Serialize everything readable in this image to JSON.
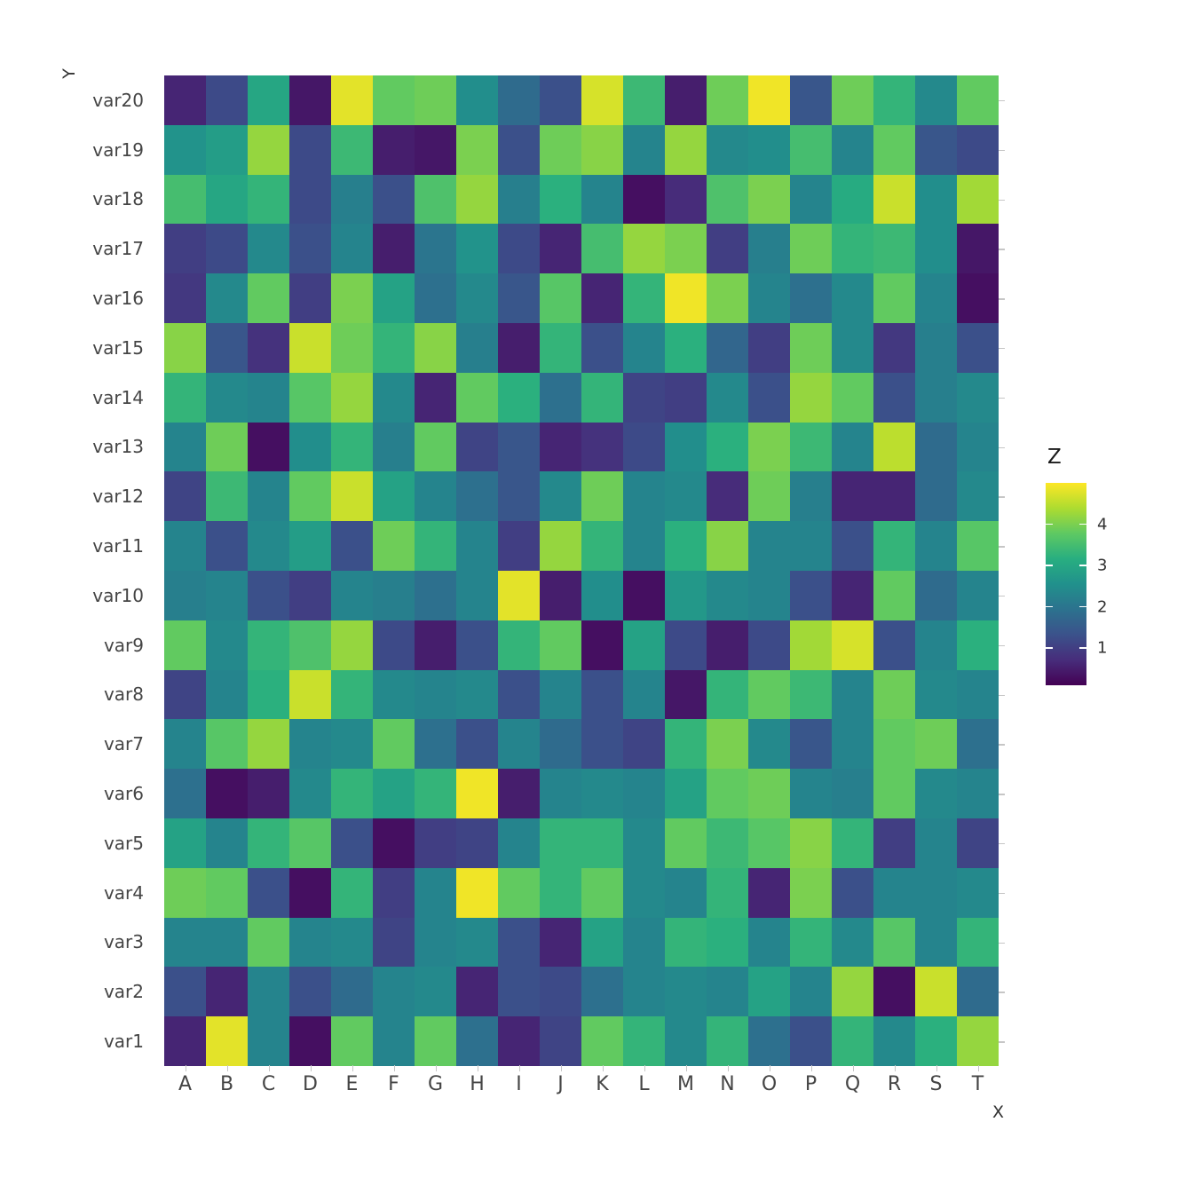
{
  "figure": {
    "background": "#ffffff"
  },
  "axes": {
    "x_title": "X",
    "y_title": "Y"
  },
  "legend": {
    "title": "Z",
    "ticks": [
      4,
      3,
      2,
      1
    ],
    "domain": [
      0.1,
      5.0
    ]
  },
  "colors": {
    "viridis_stops": [
      "#440154",
      "#472d7b",
      "#3b528b",
      "#2c728e",
      "#21918c",
      "#28ae80",
      "#5ec962",
      "#addc30",
      "#fde725"
    ],
    "tick_color": "#c6c6c6",
    "label_color": "#454545"
  },
  "chart_data": {
    "type": "heatmap",
    "title": "",
    "xlabel": "X",
    "ylabel": "Y",
    "zlabel": "Z",
    "x_categories": [
      "A",
      "B",
      "C",
      "D",
      "E",
      "F",
      "G",
      "H",
      "I",
      "J",
      "K",
      "L",
      "M",
      "N",
      "O",
      "P",
      "Q",
      "R",
      "S",
      "T"
    ],
    "y_categories_top_to_bottom": [
      "var20",
      "var19",
      "var18",
      "var17",
      "var16",
      "var15",
      "var14",
      "var13",
      "var12",
      "var11",
      "var10",
      "var9",
      "var8",
      "var7",
      "var6",
      "var5",
      "var4",
      "var3",
      "var2",
      "var1"
    ],
    "z_domain": [
      0.1,
      5.0
    ],
    "values_top_to_bottom": [
      [
        0.6,
        1.2,
        3.0,
        0.4,
        4.8,
        3.8,
        3.9,
        2.5,
        1.8,
        1.3,
        4.7,
        3.4,
        0.5,
        3.9,
        4.9,
        1.4,
        3.9,
        3.3,
        2.4,
        3.8
      ],
      [
        2.6,
        2.8,
        4.2,
        1.2,
        3.4,
        0.5,
        0.4,
        4.0,
        1.3,
        3.9,
        4.1,
        2.3,
        4.2,
        2.4,
        2.5,
        3.5,
        2.3,
        3.8,
        1.4,
        1.2
      ],
      [
        3.5,
        3.0,
        3.3,
        1.2,
        2.2,
        1.3,
        3.6,
        4.2,
        2.2,
        3.2,
        2.3,
        0.3,
        0.7,
        3.6,
        4.0,
        2.3,
        3.1,
        4.6,
        2.5,
        4.3
      ],
      [
        1.0,
        1.2,
        2.4,
        1.3,
        2.3,
        0.5,
        2.0,
        2.6,
        1.2,
        0.6,
        3.5,
        4.2,
        4.0,
        1.0,
        2.2,
        3.9,
        3.3,
        3.4,
        2.5,
        0.4
      ],
      [
        0.9,
        2.4,
        3.8,
        1.0,
        4.0,
        2.9,
        1.9,
        2.4,
        1.4,
        3.7,
        0.6,
        3.3,
        4.9,
        4.0,
        2.3,
        1.9,
        2.4,
        3.8,
        2.3,
        0.3
      ],
      [
        4.1,
        1.4,
        0.8,
        4.6,
        3.9,
        3.3,
        4.1,
        2.2,
        0.5,
        3.3,
        1.3,
        2.3,
        3.2,
        1.7,
        1.0,
        3.9,
        2.4,
        0.9,
        2.2,
        1.3
      ],
      [
        3.3,
        2.4,
        2.3,
        3.7,
        4.2,
        2.4,
        0.6,
        3.8,
        3.2,
        1.9,
        3.3,
        1.1,
        1.0,
        2.4,
        1.3,
        4.2,
        3.8,
        1.3,
        2.2,
        2.4
      ],
      [
        2.3,
        3.9,
        0.3,
        2.5,
        3.3,
        2.2,
        3.8,
        1.1,
        1.4,
        0.6,
        0.8,
        1.2,
        2.5,
        3.2,
        4.0,
        3.4,
        2.3,
        4.5,
        1.8,
        2.3
      ],
      [
        1.1,
        3.4,
        2.3,
        3.8,
        4.6,
        2.9,
        2.3,
        1.9,
        1.4,
        2.4,
        3.9,
        2.3,
        2.4,
        0.7,
        3.9,
        2.2,
        0.6,
        0.6,
        1.8,
        2.4
      ],
      [
        2.3,
        1.3,
        2.4,
        2.8,
        1.3,
        3.9,
        3.3,
        2.3,
        1.0,
        4.2,
        3.3,
        2.3,
        3.2,
        4.1,
        2.3,
        2.3,
        1.3,
        3.3,
        2.3,
        3.7
      ],
      [
        2.2,
        2.3,
        1.3,
        1.0,
        2.3,
        2.2,
        1.9,
        2.3,
        4.8,
        0.5,
        2.5,
        0.3,
        2.7,
        2.4,
        2.3,
        1.3,
        0.6,
        3.8,
        1.8,
        2.3
      ],
      [
        3.8,
        2.4,
        3.3,
        3.6,
        4.2,
        1.2,
        0.5,
        1.3,
        3.3,
        3.8,
        0.3,
        2.9,
        1.2,
        0.5,
        1.2,
        4.3,
        4.7,
        1.3,
        2.3,
        3.2
      ],
      [
        1.1,
        2.3,
        3.2,
        4.6,
        3.3,
        2.4,
        2.3,
        2.4,
        1.3,
        2.3,
        1.3,
        2.3,
        0.4,
        3.3,
        3.8,
        3.4,
        2.3,
        3.9,
        2.4,
        2.3
      ],
      [
        2.3,
        3.7,
        4.2,
        2.3,
        2.4,
        3.8,
        1.9,
        1.3,
        2.3,
        1.8,
        1.3,
        1.1,
        3.3,
        4.0,
        2.4,
        1.4,
        2.3,
        3.8,
        3.9,
        1.9
      ],
      [
        1.9,
        0.3,
        0.5,
        2.4,
        3.3,
        2.9,
        3.3,
        4.9,
        0.5,
        2.3,
        2.4,
        2.3,
        2.9,
        3.8,
        3.9,
        2.3,
        2.2,
        3.8,
        2.4,
        2.3
      ],
      [
        2.9,
        2.3,
        3.3,
        3.7,
        1.3,
        0.3,
        1.0,
        1.1,
        2.3,
        3.3,
        3.3,
        2.4,
        3.8,
        3.4,
        3.7,
        4.1,
        3.3,
        1.0,
        2.3,
        1.1
      ],
      [
        3.9,
        3.8,
        1.3,
        0.3,
        3.3,
        1.0,
        2.3,
        4.9,
        3.8,
        3.3,
        3.8,
        2.4,
        2.3,
        3.3,
        0.6,
        4.0,
        1.3,
        2.3,
        2.3,
        2.4
      ],
      [
        2.3,
        2.3,
        3.8,
        2.3,
        2.4,
        1.1,
        2.3,
        2.4,
        1.3,
        0.6,
        2.9,
        2.3,
        3.3,
        3.2,
        2.3,
        3.3,
        2.4,
        3.7,
        2.3,
        3.3
      ],
      [
        1.3,
        0.6,
        2.3,
        1.3,
        1.8,
        2.3,
        2.4,
        0.6,
        1.3,
        1.2,
        1.9,
        2.3,
        2.4,
        2.3,
        2.9,
        2.3,
        4.2,
        0.3,
        4.6,
        1.8
      ],
      [
        0.6,
        4.8,
        2.3,
        0.3,
        3.8,
        2.3,
        3.8,
        1.9,
        0.6,
        1.1,
        3.8,
        3.3,
        2.4,
        3.3,
        1.9,
        1.3,
        3.3,
        2.4,
        3.2,
        4.2
      ]
    ]
  }
}
